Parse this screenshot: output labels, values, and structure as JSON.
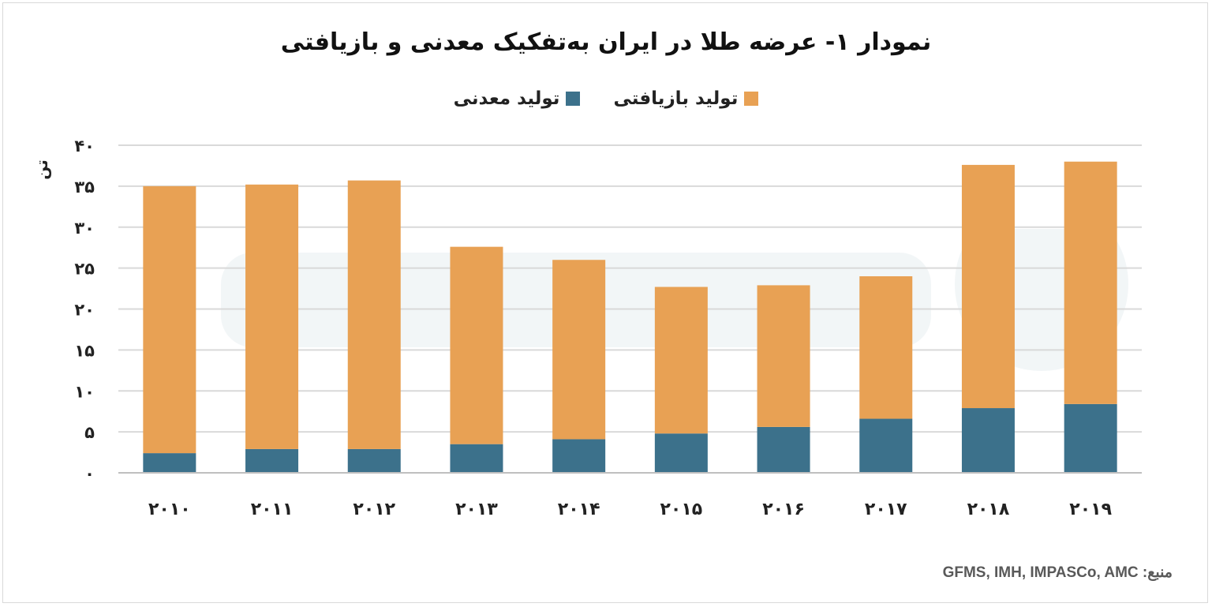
{
  "chart_data": {
    "type": "bar",
    "stacked": true,
    "title": "نمودار ۱- عرضه طلا در ایران به‌تفکیک معدنی و بازیافتی",
    "ylabel": "تن",
    "categories": [
      "۲۰۱۰",
      "۲۰۱۱",
      "۲۰۱۲",
      "۲۰۱۳",
      "۲۰۱۴",
      "۲۰۱۵",
      "۲۰۱۶",
      "۲۰۱۷",
      "۲۰۱۸",
      "۲۰۱۹"
    ],
    "series": [
      {
        "name": "تولید معدنی",
        "color": "#3c718b",
        "values": [
          2.4,
          2.9,
          2.9,
          3.5,
          4.1,
          4.8,
          5.6,
          6.6,
          7.9,
          8.4
        ]
      },
      {
        "name": "تولید بازیافتی",
        "color": "#e8a154",
        "values": [
          32.6,
          32.3,
          32.8,
          24.1,
          21.9,
          17.9,
          17.3,
          17.4,
          29.7,
          29.6
        ]
      }
    ],
    "ylim": [
      0,
      40
    ],
    "yticks": [
      "۰",
      "۵",
      "۱۰",
      "۱۵",
      "۲۰",
      "۲۵",
      "۳۰",
      "۳۵",
      "۴۰"
    ],
    "grid": true,
    "legend_position": "top"
  },
  "source": "منبع: GFMS, IMH, IMPASCo, AMC"
}
